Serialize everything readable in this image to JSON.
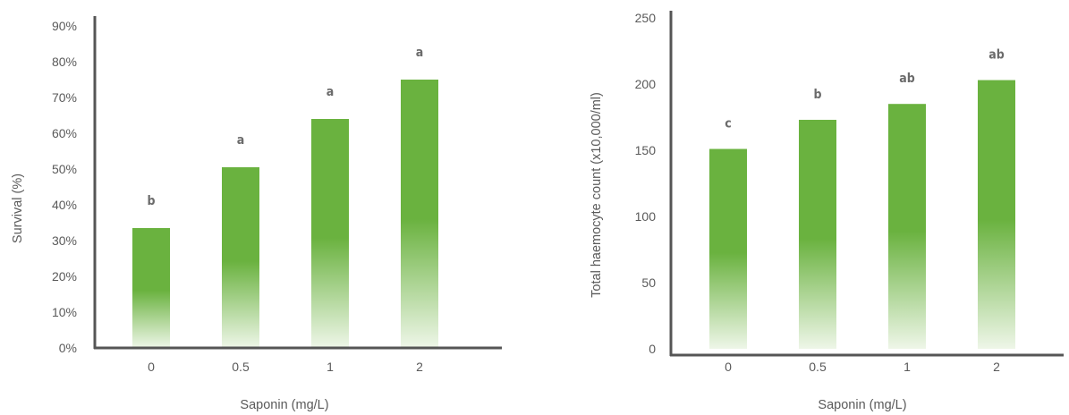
{
  "colors": {
    "bar_top": "#6ab23f",
    "bar_bottom": "#eef6e8",
    "axis": "#555555",
    "text": "#5a5a5a",
    "sig_text": "#6b6b6b"
  },
  "chart_data": [
    {
      "type": "bar",
      "title": "",
      "xlabel": "Saponin (mg/L)",
      "ylabel": "Survival (%)",
      "categories": [
        "0",
        "0.5",
        "1",
        "2"
      ],
      "values": [
        33.5,
        50.5,
        64,
        75
      ],
      "significance": [
        "b",
        "a",
        "a",
        "a"
      ],
      "ylim": [
        0,
        90
      ],
      "yticks": [
        0,
        10,
        20,
        30,
        40,
        50,
        60,
        70,
        80,
        90
      ],
      "ytick_labels": [
        "0%",
        "10%",
        "20%",
        "30%",
        "40%",
        "50%",
        "60%",
        "70%",
        "80%",
        "90%"
      ],
      "grid": false,
      "legend": "none"
    },
    {
      "type": "bar",
      "title": "",
      "xlabel": "Saponin (mg/L)",
      "ylabel": "Total haemocyte count (x10,000/ml)",
      "categories": [
        "0",
        "0.5",
        "1",
        "2"
      ],
      "values": [
        151,
        173,
        185,
        203
      ],
      "significance": [
        "c",
        "b",
        "ab",
        "ab"
      ],
      "ylim": [
        0,
        250
      ],
      "yticks": [
        0,
        50,
        100,
        150,
        200,
        250
      ],
      "ytick_labels": [
        "0",
        "50",
        "100",
        "150",
        "200",
        "250"
      ],
      "grid": false,
      "legend": "none"
    }
  ]
}
